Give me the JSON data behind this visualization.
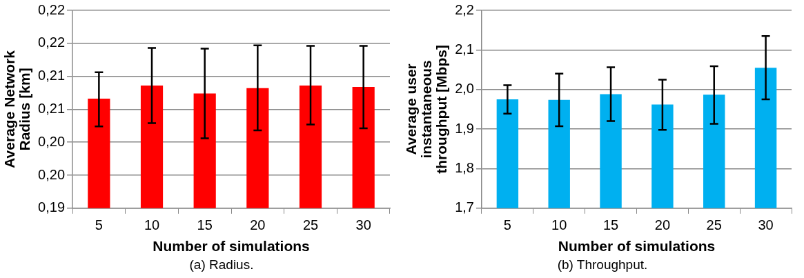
{
  "chart_data": [
    {
      "type": "bar",
      "xlabel": "Number of simulations",
      "ylabel": "Average Network Radius [km]",
      "categories": [
        "5",
        "10",
        "15",
        "20",
        "25",
        "30"
      ],
      "series": [
        {
          "color": "#ff0000",
          "values": [
            0.2066,
            0.2086,
            0.2074,
            0.2082,
            0.2086,
            0.2084
          ],
          "errors": [
            [
              0.2024,
              0.2106
            ],
            [
              0.2029,
              0.2143
            ],
            [
              0.2006,
              0.2142
            ],
            [
              0.2018,
              0.2147
            ],
            [
              0.2027,
              0.2146
            ],
            [
              0.2021,
              0.2146
            ]
          ]
        }
      ],
      "ylim": [
        0.19,
        0.22
      ],
      "yticks": [
        {
          "value": 0.19,
          "label": "0,19"
        },
        {
          "value": 0.195,
          "label": "0,20"
        },
        {
          "value": 0.2,
          "label": "0,20"
        },
        {
          "value": 0.205,
          "label": "0,21"
        },
        {
          "value": 0.21,
          "label": "0,21"
        },
        {
          "value": 0.215,
          "label": "0,22"
        },
        {
          "value": 0.22,
          "label": "0,22"
        }
      ],
      "grid": "y",
      "legend": false,
      "annotations": [
        "(a)  Radius."
      ]
    },
    {
      "type": "bar",
      "xlabel": "Number of simulations",
      "ylabel": "Average user instantaneous throughput [Mbps]",
      "categories": [
        "5",
        "10",
        "15",
        "20",
        "25",
        "30"
      ],
      "series": [
        {
          "color": "#00b0f0",
          "values": [
            1.975,
            1.974,
            1.988,
            1.962,
            1.987,
            2.055
          ],
          "errors": [
            [
              1.939,
              2.011
            ],
            [
              1.907,
              2.04
            ],
            [
              1.92,
              2.056
            ],
            [
              1.898,
              2.025
            ],
            [
              1.913,
              2.059
            ],
            [
              1.975,
              2.135
            ]
          ]
        }
      ],
      "ylim": [
        1.7,
        2.2
      ],
      "yticks": [
        {
          "value": 1.7,
          "label": "1,7"
        },
        {
          "value": 1.8,
          "label": "1,8"
        },
        {
          "value": 1.9,
          "label": "1,9"
        },
        {
          "value": 2.0,
          "label": "2,0"
        },
        {
          "value": 2.1,
          "label": "2,1"
        },
        {
          "value": 2.2,
          "label": "2,2"
        }
      ],
      "grid": "y",
      "legend": false,
      "annotations": [
        "(b)  Throughput."
      ]
    }
  ]
}
